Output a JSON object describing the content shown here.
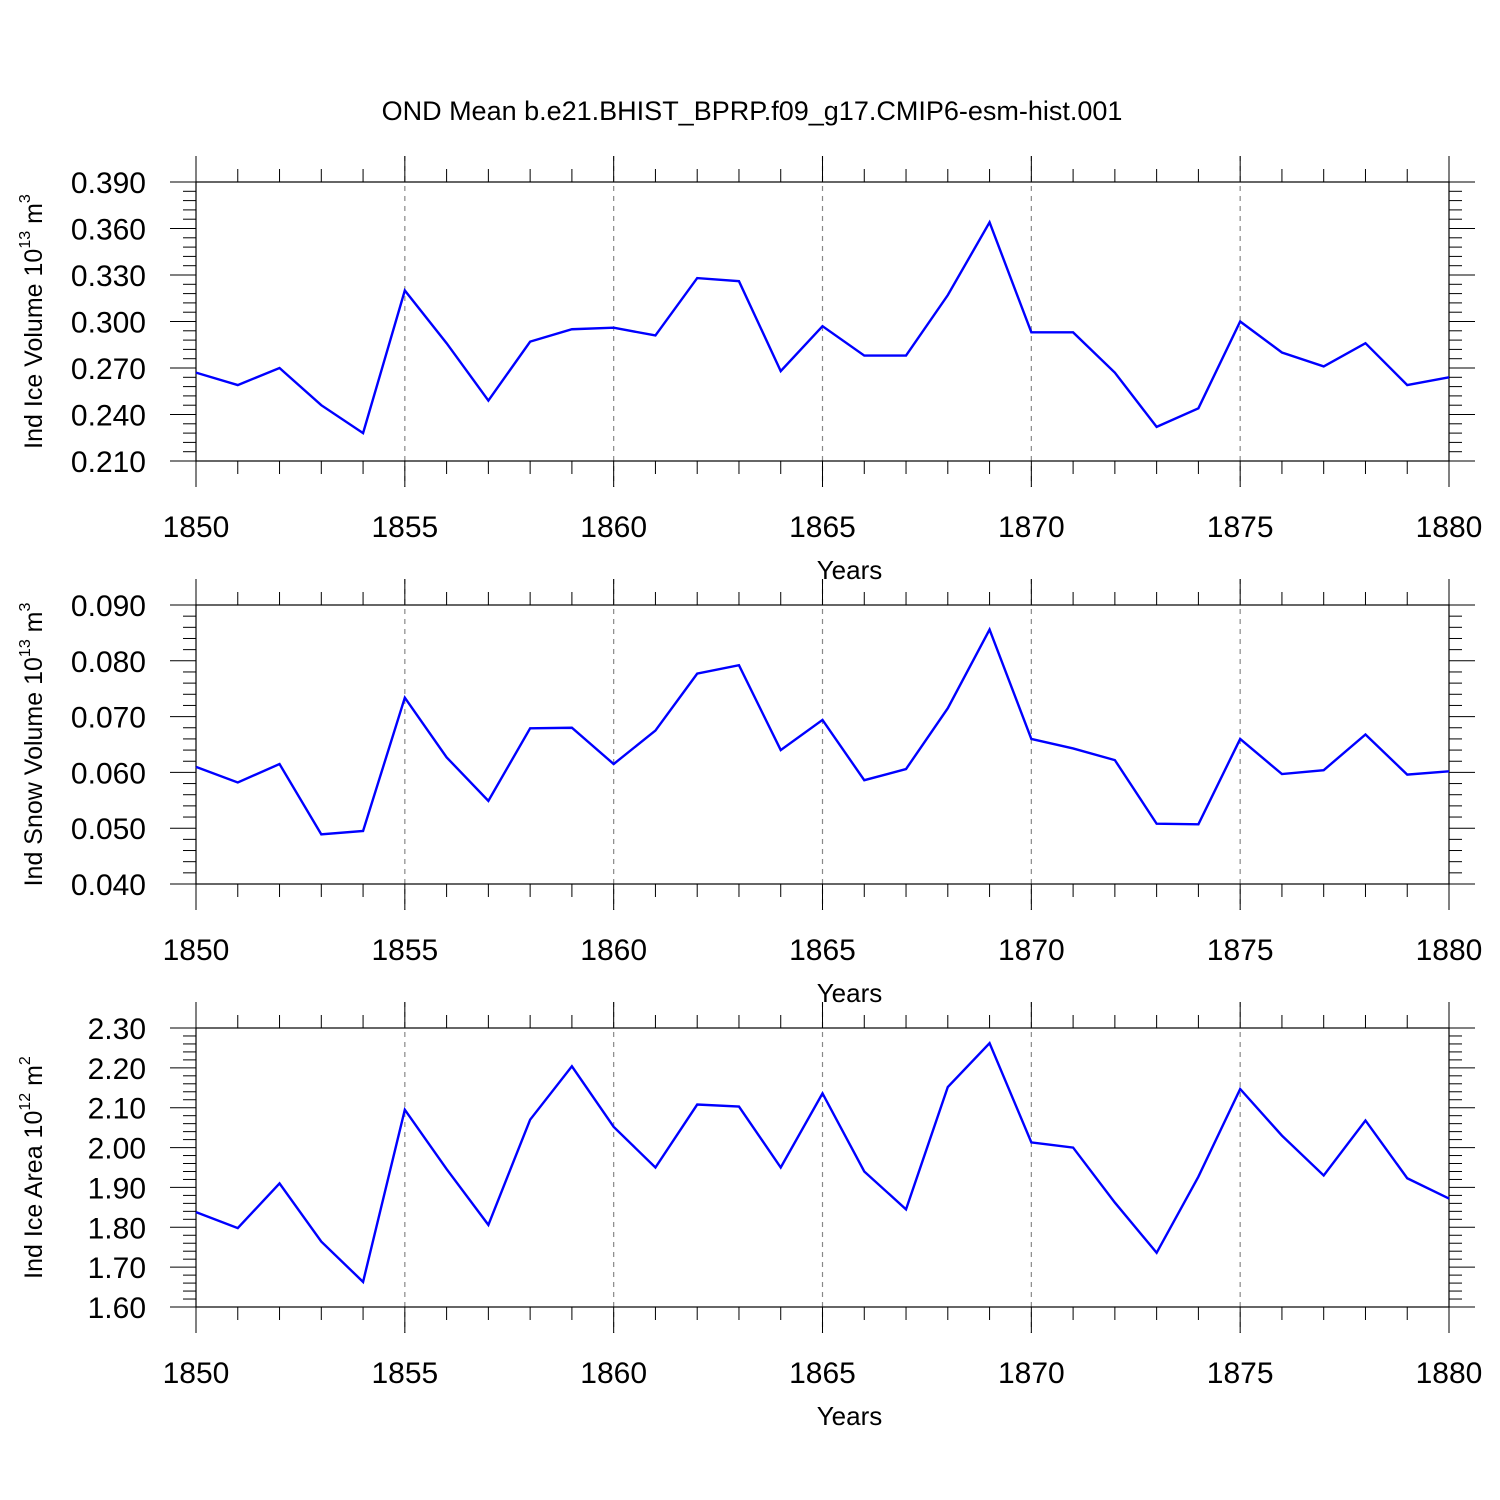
{
  "title": "OND Mean b.e21.BHIST_BPRP.f09_g17.CMIP6-esm-hist.001",
  "colors": {
    "line": "#0000ff",
    "grid": "#888888",
    "axis": "#000000"
  },
  "chart_data": [
    {
      "type": "line",
      "title": "",
      "xlabel": "Years",
      "ylabel": {
        "prefix": "Ind Ice Volume 10",
        "exponent": "13",
        "unit": " m",
        "unit_exponent": "3"
      },
      "xlim": [
        1850,
        1880
      ],
      "ylim": [
        0.21,
        0.39
      ],
      "xticks": [
        "1850",
        "1855",
        "1860",
        "1865",
        "1870",
        "1875",
        "1880"
      ],
      "yticks": [
        "0.210",
        "0.240",
        "0.270",
        "0.300",
        "0.330",
        "0.360",
        "0.390"
      ],
      "x": [
        1850,
        1851,
        1852,
        1853,
        1854,
        1855,
        1856,
        1857,
        1858,
        1859,
        1860,
        1861,
        1862,
        1863,
        1864,
        1865,
        1866,
        1867,
        1868,
        1869,
        1870,
        1871,
        1872,
        1873,
        1874,
        1875,
        1876,
        1877,
        1878,
        1879,
        1880
      ],
      "series": [
        {
          "name": "Ind Ice Volume",
          "values": [
            0.267,
            0.259,
            0.27,
            0.246,
            0.228,
            0.32,
            0.286,
            0.249,
            0.287,
            0.295,
            0.296,
            0.291,
            0.328,
            0.326,
            0.268,
            0.297,
            0.278,
            0.278,
            0.317,
            0.364,
            0.293,
            0.293,
            0.267,
            0.232,
            0.244,
            0.3,
            0.28,
            0.271,
            0.286,
            0.259,
            0.264
          ]
        }
      ]
    },
    {
      "type": "line",
      "title": "",
      "xlabel": "Years",
      "ylabel": {
        "prefix": "Ind Snow Volume 10",
        "exponent": "13",
        "unit": " m",
        "unit_exponent": "3"
      },
      "xlim": [
        1850,
        1880
      ],
      "ylim": [
        0.04,
        0.09
      ],
      "xticks": [
        "1850",
        "1855",
        "1860",
        "1865",
        "1870",
        "1875",
        "1880"
      ],
      "yticks": [
        "0.040",
        "0.050",
        "0.060",
        "0.070",
        "0.080",
        "0.090"
      ],
      "x": [
        1850,
        1851,
        1852,
        1853,
        1854,
        1855,
        1856,
        1857,
        1858,
        1859,
        1860,
        1861,
        1862,
        1863,
        1864,
        1865,
        1866,
        1867,
        1868,
        1869,
        1870,
        1871,
        1872,
        1873,
        1874,
        1875,
        1876,
        1877,
        1878,
        1879,
        1880
      ],
      "series": [
        {
          "name": "Ind Snow Volume",
          "values": [
            0.061,
            0.0582,
            0.0615,
            0.0489,
            0.0495,
            0.0734,
            0.0627,
            0.0549,
            0.0679,
            0.068,
            0.0615,
            0.0675,
            0.0777,
            0.0792,
            0.064,
            0.0694,
            0.0586,
            0.0606,
            0.0715,
            0.0856,
            0.066,
            0.0643,
            0.0622,
            0.0508,
            0.0507,
            0.066,
            0.0597,
            0.0604,
            0.0668,
            0.0596,
            0.0602
          ]
        }
      ]
    },
    {
      "type": "line",
      "title": "",
      "xlabel": "Years",
      "ylabel": {
        "prefix": "Ind Ice Area 10",
        "exponent": "12",
        "unit": " m",
        "unit_exponent": "2"
      },
      "xlim": [
        1850,
        1880
      ],
      "ylim": [
        1.6,
        2.3
      ],
      "xticks": [
        "1850",
        "1855",
        "1860",
        "1865",
        "1870",
        "1875",
        "1880"
      ],
      "yticks": [
        "1.60",
        "1.70",
        "1.80",
        "1.90",
        "2.00",
        "2.10",
        "2.20",
        "2.30"
      ],
      "x": [
        1850,
        1851,
        1852,
        1853,
        1854,
        1855,
        1856,
        1857,
        1858,
        1859,
        1860,
        1861,
        1862,
        1863,
        1864,
        1865,
        1866,
        1867,
        1868,
        1869,
        1870,
        1871,
        1872,
        1873,
        1874,
        1875,
        1876,
        1877,
        1878,
        1879,
        1880
      ],
      "series": [
        {
          "name": "Ind Ice Area",
          "values": [
            1.838,
            1.798,
            1.91,
            1.764,
            1.663,
            2.095,
            1.946,
            1.806,
            2.07,
            2.204,
            2.052,
            1.95,
            2.108,
            2.103,
            1.95,
            2.136,
            1.94,
            1.845,
            2.152,
            2.262,
            2.013,
            2.0,
            1.862,
            1.736,
            1.927,
            2.147,
            2.03,
            1.93,
            2.068,
            1.923,
            1.872
          ]
        }
      ]
    }
  ]
}
